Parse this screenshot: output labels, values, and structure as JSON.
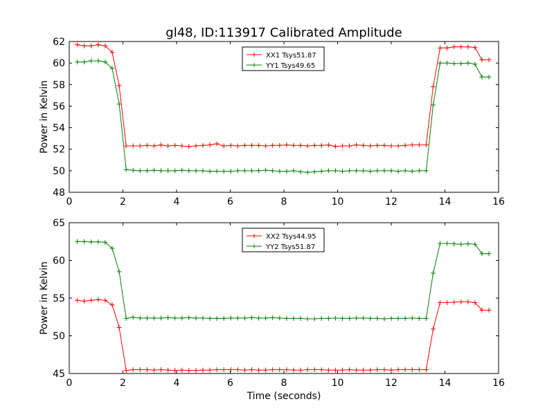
{
  "figure": {
    "title": "gl48, ID:113917 Calibrated Amplitude"
  },
  "chart_data": [
    {
      "type": "line",
      "title": "gl48, ID:113917 Calibrated Amplitude",
      "xlabel": "",
      "ylabel": "Power in Kelvin",
      "xlim": [
        0,
        16
      ],
      "ylim": [
        48,
        62
      ],
      "xticks": [
        "0",
        "2",
        "4",
        "6",
        "8",
        "10",
        "12",
        "14",
        "16"
      ],
      "yticks": [
        "48",
        "50",
        "52",
        "54",
        "56",
        "58",
        "60",
        "62"
      ],
      "legend_position": "top-center",
      "grid": false,
      "x": [
        0.3,
        0.56,
        0.82,
        1.08,
        1.34,
        1.6,
        1.86,
        2.12,
        2.38,
        2.64,
        2.9,
        3.16,
        3.42,
        3.68,
        3.94,
        4.2,
        4.46,
        4.72,
        4.98,
        5.24,
        5.5,
        5.76,
        6.02,
        6.28,
        6.54,
        6.8,
        7.06,
        7.32,
        7.58,
        7.84,
        8.1,
        8.36,
        8.62,
        8.88,
        9.14,
        9.4,
        9.66,
        9.92,
        10.18,
        10.44,
        10.7,
        10.96,
        11.22,
        11.48,
        11.74,
        12.0,
        12.26,
        12.52,
        12.78,
        13.04,
        13.3,
        13.56,
        13.82,
        14.08,
        14.34,
        14.6,
        14.86,
        15.12,
        15.38,
        15.64
      ],
      "series": [
        {
          "name": "XX1 Tsys51.87",
          "color": "#ff0000",
          "values": [
            61.7,
            61.6,
            61.6,
            61.7,
            61.6,
            61.0,
            57.9,
            52.3,
            52.3,
            52.3,
            52.35,
            52.3,
            52.4,
            52.3,
            52.35,
            52.3,
            52.25,
            52.3,
            52.35,
            52.4,
            52.5,
            52.3,
            52.35,
            52.3,
            52.35,
            52.35,
            52.35,
            52.3,
            52.35,
            52.35,
            52.4,
            52.35,
            52.35,
            52.3,
            52.35,
            52.35,
            52.4,
            52.25,
            52.3,
            52.3,
            52.4,
            52.35,
            52.3,
            52.35,
            52.35,
            52.3,
            52.3,
            52.35,
            52.4,
            52.4,
            52.4,
            57.8,
            61.4,
            61.4,
            61.5,
            61.5,
            61.5,
            61.45,
            60.3,
            60.3
          ]
        },
        {
          "name": "YY1 Tsys49.65",
          "color": "#008000",
          "values": [
            60.1,
            60.1,
            60.2,
            60.2,
            60.1,
            59.5,
            56.2,
            50.1,
            50.05,
            50.0,
            50.0,
            50.05,
            50.0,
            50.0,
            50.0,
            50.05,
            50.0,
            50.0,
            50.0,
            49.95,
            49.95,
            49.95,
            49.95,
            50.0,
            50.0,
            50.0,
            50.0,
            50.05,
            50.0,
            49.95,
            49.95,
            50.0,
            49.9,
            49.85,
            49.9,
            49.95,
            50.0,
            50.0,
            49.95,
            50.0,
            50.0,
            50.0,
            49.95,
            50.0,
            50.0,
            50.0,
            49.95,
            50.0,
            49.95,
            50.0,
            50.0,
            56.1,
            60.0,
            60.0,
            59.95,
            59.95,
            60.0,
            59.9,
            58.7,
            58.7
          ]
        }
      ]
    },
    {
      "type": "line",
      "title": "",
      "xlabel": "Time (seconds)",
      "ylabel": "Power in Kelvin",
      "xlim": [
        0,
        16
      ],
      "ylim": [
        45,
        65
      ],
      "xticks": [
        "0",
        "2",
        "4",
        "6",
        "8",
        "10",
        "12",
        "14",
        "16"
      ],
      "yticks": [
        "45",
        "50",
        "55",
        "60",
        "65"
      ],
      "legend_position": "top-center",
      "grid": false,
      "x": [
        0.3,
        0.56,
        0.82,
        1.08,
        1.34,
        1.6,
        1.86,
        2.12,
        2.38,
        2.64,
        2.9,
        3.16,
        3.42,
        3.68,
        3.94,
        4.2,
        4.46,
        4.72,
        4.98,
        5.24,
        5.5,
        5.76,
        6.02,
        6.28,
        6.54,
        6.8,
        7.06,
        7.32,
        7.58,
        7.84,
        8.1,
        8.36,
        8.62,
        8.88,
        9.14,
        9.4,
        9.66,
        9.92,
        10.18,
        10.44,
        10.7,
        10.96,
        11.22,
        11.48,
        11.74,
        12.0,
        12.26,
        12.52,
        12.78,
        13.04,
        13.3,
        13.56,
        13.82,
        14.08,
        14.34,
        14.6,
        14.86,
        15.12,
        15.38,
        15.64
      ],
      "series": [
        {
          "name": "XX2 Tsys44.95",
          "color": "#ff0000",
          "values": [
            54.7,
            54.6,
            54.7,
            54.8,
            54.7,
            54.1,
            51.1,
            45.4,
            45.5,
            45.5,
            45.5,
            45.45,
            45.5,
            45.45,
            45.4,
            45.45,
            45.4,
            45.4,
            45.45,
            45.45,
            45.5,
            45.5,
            45.5,
            45.5,
            45.45,
            45.5,
            45.45,
            45.45,
            45.5,
            45.5,
            45.5,
            45.45,
            45.45,
            45.5,
            45.5,
            45.5,
            45.45,
            45.45,
            45.45,
            45.5,
            45.45,
            45.45,
            45.45,
            45.5,
            45.5,
            45.45,
            45.5,
            45.5,
            45.5,
            45.5,
            45.5,
            50.9,
            54.4,
            54.4,
            54.45,
            54.5,
            54.5,
            54.4,
            53.4,
            53.4
          ]
        },
        {
          "name": "YY2 Tsys51.87",
          "color": "#008000",
          "values": [
            62.5,
            62.5,
            62.45,
            62.45,
            62.4,
            61.6,
            58.5,
            52.3,
            52.45,
            52.35,
            52.35,
            52.35,
            52.35,
            52.4,
            52.35,
            52.35,
            52.4,
            52.35,
            52.35,
            52.3,
            52.3,
            52.3,
            52.35,
            52.35,
            52.35,
            52.4,
            52.35,
            52.35,
            52.4,
            52.35,
            52.3,
            52.3,
            52.3,
            52.25,
            52.25,
            52.3,
            52.3,
            52.35,
            52.3,
            52.3,
            52.35,
            52.35,
            52.3,
            52.3,
            52.25,
            52.3,
            52.3,
            52.3,
            52.35,
            52.3,
            52.3,
            58.3,
            62.25,
            62.25,
            62.2,
            62.15,
            62.2,
            62.15,
            60.9,
            60.9
          ]
        }
      ]
    }
  ]
}
